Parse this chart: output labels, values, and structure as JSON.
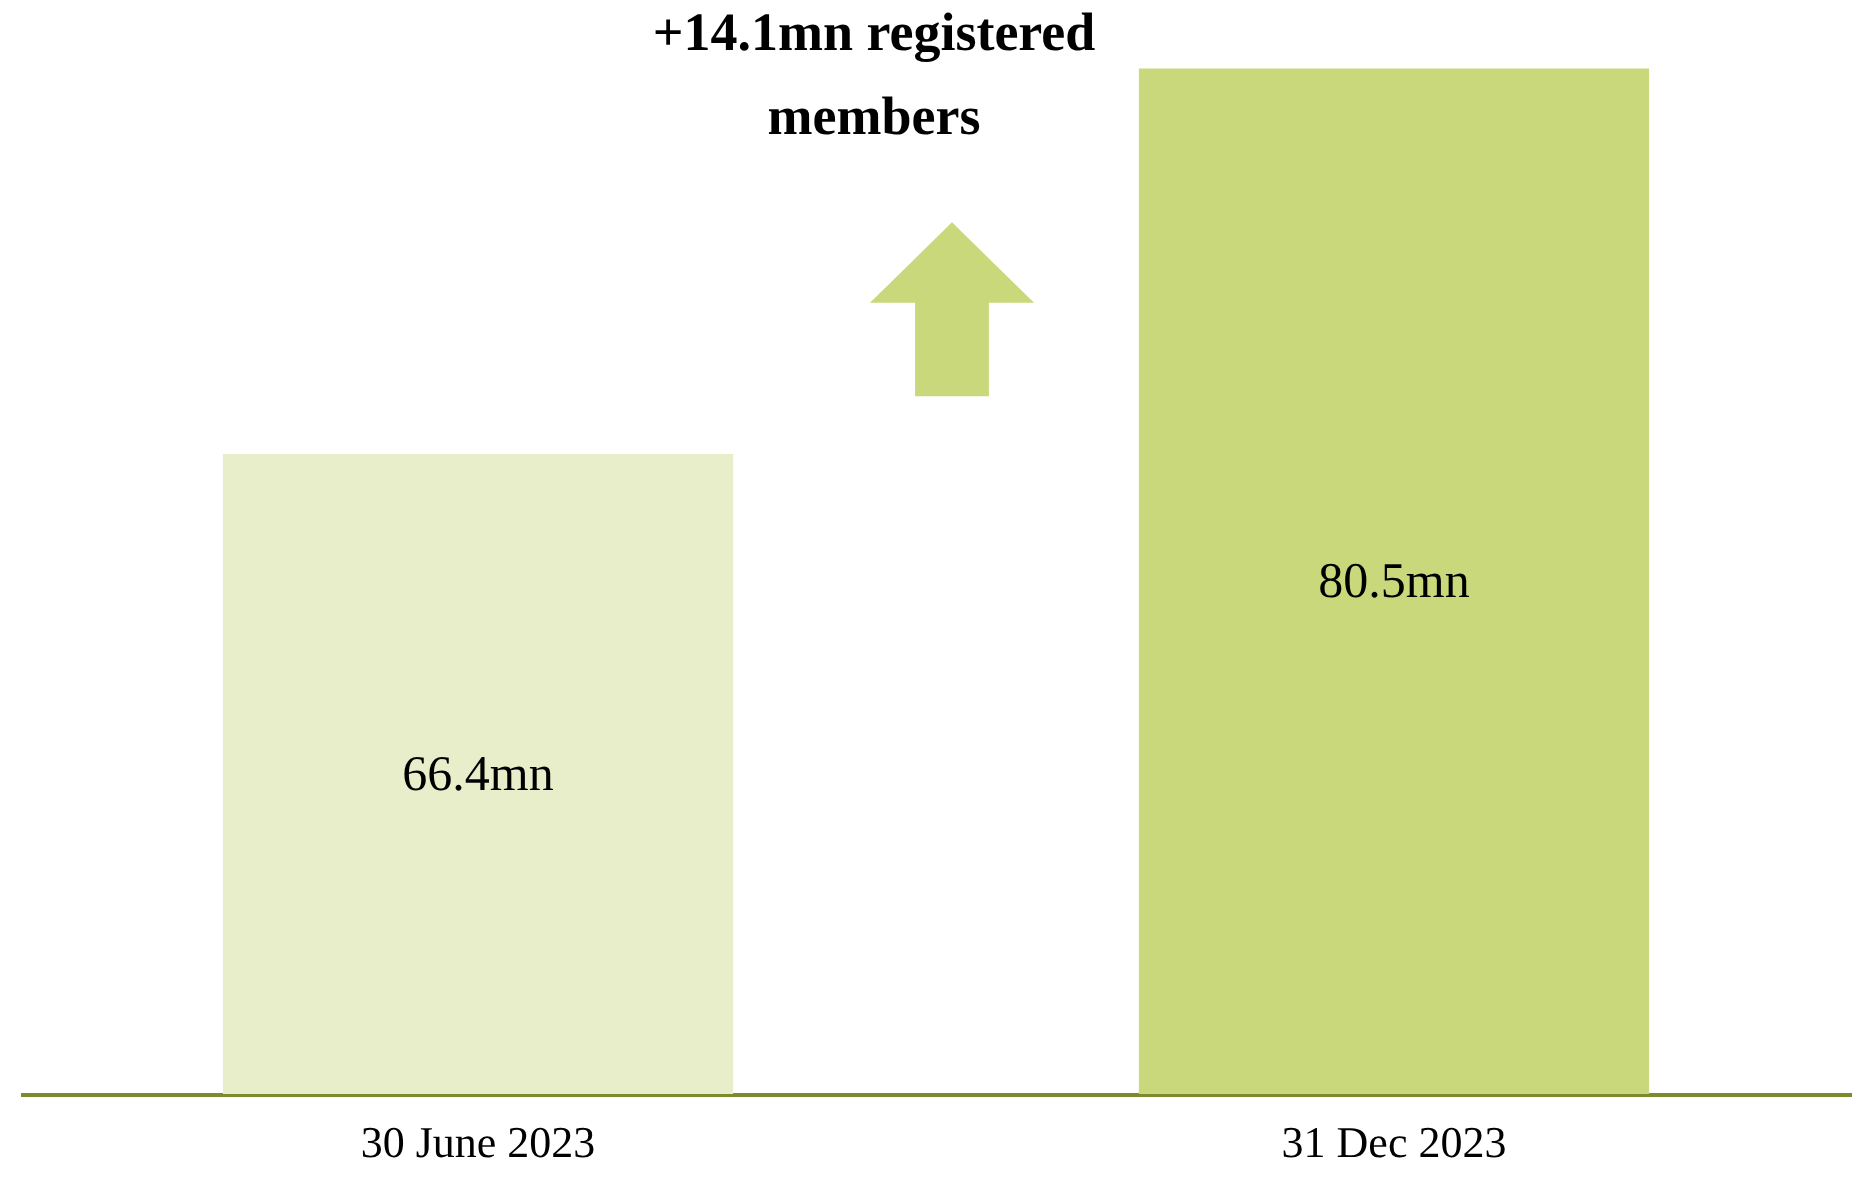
{
  "chart_data": {
    "type": "bar",
    "categories": [
      "30 June 2023",
      "31 Dec 2023"
    ],
    "values": [
      66.4,
      80.5
    ],
    "colors": [
      "#e8eec9",
      "#c9d87a"
    ],
    "value_labels": [
      "66.4mn",
      "80.5mn"
    ],
    "ylim": [
      43,
      83
    ],
    "annotations": [
      "+14.1mn registered\nmembers"
    ],
    "grid": false,
    "tick_labels": "x"
  }
}
